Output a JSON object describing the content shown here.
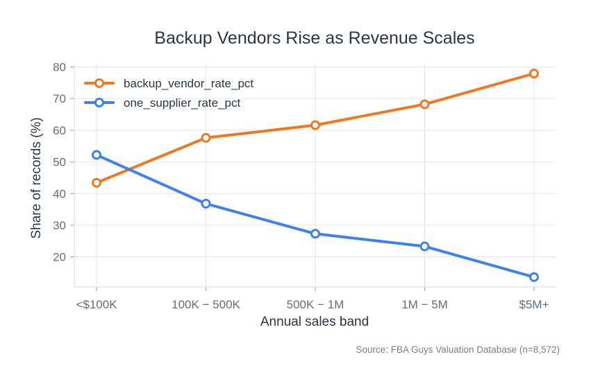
{
  "chart_data": {
    "type": "line",
    "title": "Backup Vendors Rise as Revenue Scales",
    "xlabel": "Annual sales band",
    "ylabel": "Share of records (%)",
    "categories": [
      "<$100K",
      "$100K – $500K",
      "$500K – $1M",
      "$1M – $5M",
      "$5M+"
    ],
    "category_display": [
      "<$100K",
      "100K − 500K",
      "500K − 1M",
      "1M − 5M",
      "$5M+"
    ],
    "series": [
      {
        "name": "backup_vendor_rate_pct",
        "color": "#f07823",
        "values": [
          43.4,
          57.6,
          61.6,
          68.2,
          77.9
        ]
      },
      {
        "name": "one_supplier_rate_pct",
        "color": "#3b82f0",
        "values": [
          52.2,
          36.8,
          27.3,
          23.3,
          13.6
        ]
      }
    ],
    "ylim": [
      10.5,
      81
    ],
    "yticks": [
      20,
      30,
      40,
      50,
      60,
      70,
      80
    ],
    "grid": true,
    "legend_position": "upper-left",
    "source_note": "Source: FBA Guys Valuation Database (n=8,572)"
  }
}
